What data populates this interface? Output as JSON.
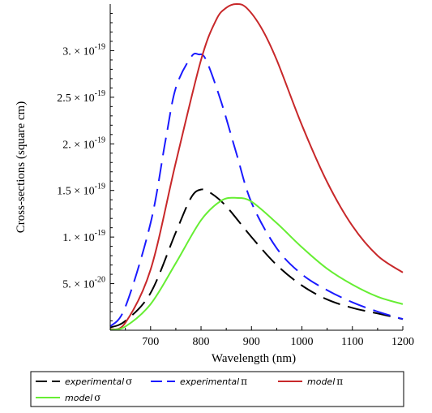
{
  "chart_data": {
    "type": "line",
    "title": "",
    "xlabel": "Wavelength (nm)",
    "ylabel": "Cross-sections (square cm)",
    "xlim": [
      620,
      1200
    ],
    "ylim": [
      0,
      3.5e-19
    ],
    "x_ticks": [
      700,
      800,
      900,
      1000,
      1100,
      1200
    ],
    "x_tick_labels": [
      "700",
      "800",
      "900",
      "1000",
      "1100",
      "1200"
    ],
    "y_ticks": [
      5e-20,
      1e-19,
      1.5e-19,
      2e-19,
      2.5e-19,
      3e-19
    ],
    "y_tick_labels": [
      {
        "mantissa": "5. × 10",
        "exponent": "-20"
      },
      {
        "mantissa": "1. × 10",
        "exponent": "-19"
      },
      {
        "mantissa": "1.5 × 10",
        "exponent": "-19"
      },
      {
        "mantissa": "2. × 10",
        "exponent": "-19"
      },
      {
        "mantissa": "2.5 × 10",
        "exponent": "-19"
      },
      {
        "mantissa": "3. × 10",
        "exponent": "-19"
      }
    ],
    "grid": false,
    "legend_position": "bottom",
    "series": [
      {
        "name": "experimental σ",
        "label_text": "experimental",
        "label_symbol": "σ",
        "color": "#000000",
        "dash": "long-dash",
        "x": [
          620,
          650,
          700,
          750,
          780,
          800,
          820,
          850,
          900,
          950,
          1000,
          1050,
          1100,
          1150,
          1200
        ],
        "y": [
          3e-21,
          1e-20,
          4e-20,
          1.05e-19,
          1.42e-19,
          1.51e-19,
          1.47e-19,
          1.33e-19,
          1e-19,
          7e-20,
          4.8e-20,
          3.3e-20,
          2.4e-20,
          1.8e-20,
          1.2e-20
        ]
      },
      {
        "name": "experimental π",
        "label_text": "experimental",
        "label_symbol": "π",
        "color": "#1a1aff",
        "dash": "long-dash",
        "x": [
          620,
          650,
          700,
          730,
          750,
          780,
          795,
          810,
          840,
          870,
          900,
          950,
          1000,
          1050,
          1100,
          1150,
          1200
        ],
        "y": [
          4e-21,
          2.5e-20,
          1.15e-19,
          2.05e-19,
          2.6e-19,
          2.93e-19,
          2.96e-19,
          2.9e-19,
          2.45e-19,
          1.9e-19,
          1.37e-19,
          8.8e-20,
          6e-20,
          4.3e-20,
          3e-20,
          2e-20,
          1.2e-20
        ]
      },
      {
        "name": "model π",
        "label_text": "model",
        "label_symbol": "π",
        "color": "#c8282a",
        "dash": "solid",
        "x": [
          620,
          650,
          700,
          750,
          800,
          830,
          850,
          870,
          890,
          920,
          950,
          1000,
          1050,
          1100,
          1150,
          1200
        ],
        "y": [
          1e-21,
          8e-21,
          6.5e-20,
          1.8e-19,
          2.9e-19,
          3.33e-19,
          3.46e-19,
          3.5e-19,
          3.46e-19,
          3.24e-19,
          2.9e-19,
          2.2e-19,
          1.59e-19,
          1.12e-19,
          8e-20,
          6.2e-20
        ]
      },
      {
        "name": "model σ",
        "label_text": "model",
        "label_symbol": "σ",
        "color": "#66ee33",
        "dash": "solid",
        "x": [
          620,
          650,
          700,
          750,
          800,
          840,
          870,
          900,
          950,
          1000,
          1050,
          1100,
          1150,
          1200
        ],
        "y": [
          5e-22,
          4e-21,
          2.8e-20,
          7.2e-20,
          1.18e-19,
          1.39e-19,
          1.42e-19,
          1.38e-19,
          1.15e-19,
          8.9e-20,
          6.6e-20,
          4.9e-20,
          3.6e-20,
          2.8e-20
        ]
      }
    ]
  }
}
